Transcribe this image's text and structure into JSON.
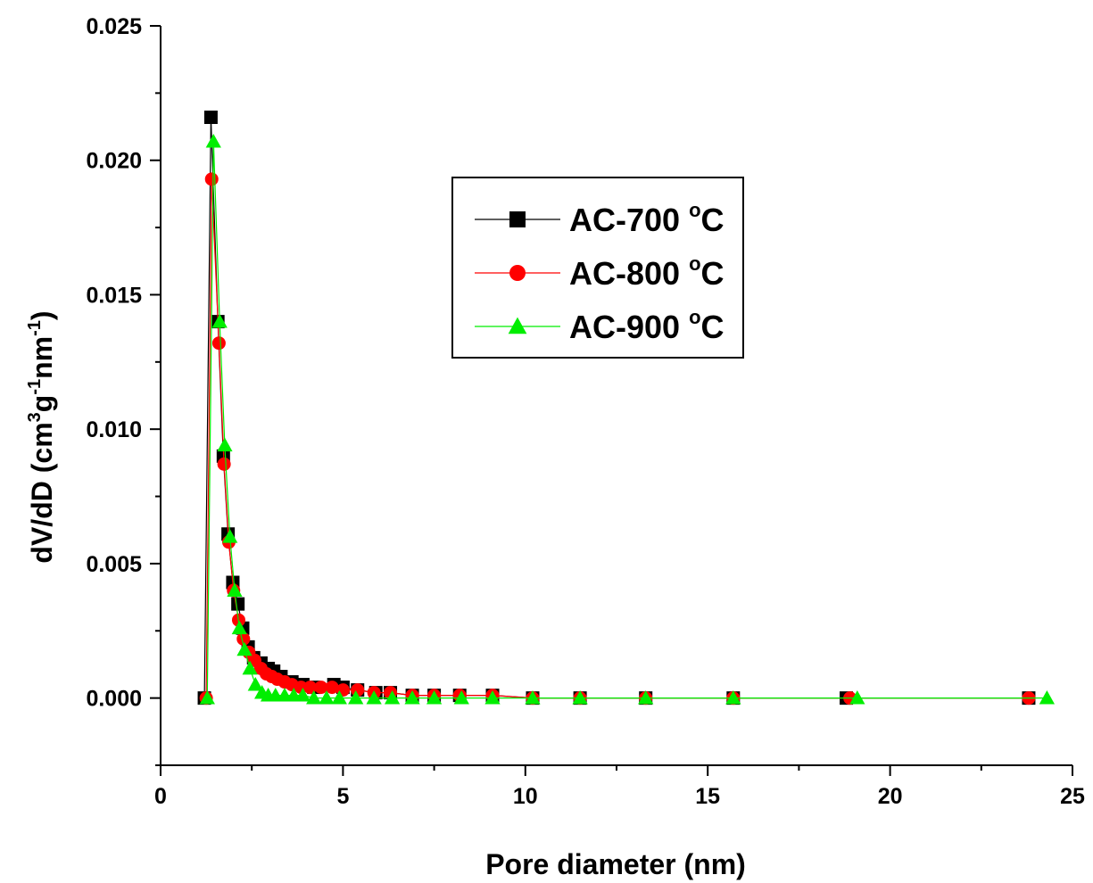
{
  "chart_data": {
    "type": "scatter",
    "xlabel": "Pore diameter (nm)",
    "ylabel": {
      "prefix": "dV/dD (cm",
      "sup1": "3",
      "mid": "g",
      "sup2": "-1",
      "mid2": "nm",
      "sup3": "-1",
      "suffix": ")"
    },
    "xlim": [
      0,
      25
    ],
    "ylim": [
      -0.0025,
      0.025
    ],
    "xticks": [
      "0",
      "5",
      "10",
      "15",
      "20",
      "25"
    ],
    "yticks": [
      "0.000",
      "0.005",
      "0.010",
      "0.015",
      "0.020",
      "0.025"
    ],
    "grid": false,
    "legend_position": "upper-center",
    "series": [
      {
        "name": "AC-700 °C",
        "name_base": "AC-700 ",
        "name_sup": "o",
        "name_unit": "C",
        "color": "#000000",
        "marker": "square",
        "x": [
          1.2,
          1.38,
          1.57,
          1.72,
          1.85,
          1.98,
          2.12,
          2.25,
          2.4,
          2.55,
          2.75,
          2.95,
          3.1,
          3.3,
          3.6,
          3.9,
          4.2,
          4.75,
          5.0,
          5.4,
          5.9,
          6.3,
          6.9,
          7.5,
          8.2,
          9.1,
          10.2,
          11.5,
          13.3,
          15.7,
          18.8,
          23.8
        ],
        "y": [
          0.0,
          0.0216,
          0.014,
          0.009,
          0.0061,
          0.0043,
          0.0035,
          0.0026,
          0.0019,
          0.0015,
          0.0013,
          0.0011,
          0.001,
          0.0008,
          0.0006,
          0.0005,
          0.0004,
          0.0005,
          0.0004,
          0.0003,
          0.0002,
          0.0002,
          0.0001,
          0.0001,
          0.0001,
          0.0001,
          0.0,
          0.0,
          0.0,
          0.0,
          0.0,
          0.0
        ]
      },
      {
        "name": "AC-800 °C",
        "name_base": "AC-800 ",
        "name_sup": "o",
        "name_unit": "C",
        "color": "#ff0000",
        "marker": "circle",
        "x": [
          1.25,
          1.4,
          1.6,
          1.74,
          1.87,
          2.0,
          2.14,
          2.27,
          2.42,
          2.58,
          2.75,
          2.9,
          3.05,
          3.2,
          3.4,
          3.6,
          3.85,
          4.1,
          4.4,
          4.7,
          5.0,
          5.4,
          5.85,
          6.3,
          6.9,
          7.5,
          8.2,
          9.1,
          10.2,
          11.5,
          13.3,
          15.7,
          18.9,
          23.8
        ],
        "y": [
          0.0,
          0.0193,
          0.0132,
          0.0087,
          0.0058,
          0.004,
          0.0029,
          0.0022,
          0.0017,
          0.0014,
          0.0011,
          0.0009,
          0.0008,
          0.0007,
          0.0006,
          0.0005,
          0.0004,
          0.0004,
          0.0004,
          0.0004,
          0.0003,
          0.0003,
          0.0002,
          0.0002,
          0.0001,
          0.0001,
          0.0001,
          0.0001,
          0.0,
          0.0,
          0.0,
          0.0,
          0.0,
          0.0
        ]
      },
      {
        "name": "AC-900 °C",
        "name_base": "AC-900 ",
        "name_sup": "o",
        "name_unit": "C",
        "color": "#00ee00",
        "marker": "triangle",
        "x": [
          1.28,
          1.45,
          1.62,
          1.76,
          1.9,
          2.03,
          2.16,
          2.3,
          2.45,
          2.6,
          2.78,
          2.95,
          3.15,
          3.4,
          3.65,
          3.9,
          4.2,
          4.55,
          4.9,
          5.35,
          5.85,
          6.35,
          6.9,
          7.5,
          8.25,
          9.1,
          10.2,
          11.5,
          13.3,
          15.7,
          19.1,
          24.3
        ],
        "y": [
          0.0,
          0.0207,
          0.014,
          0.0094,
          0.006,
          0.004,
          0.0026,
          0.0018,
          0.0011,
          0.0005,
          0.0002,
          0.0001,
          0.0001,
          0.0001,
          0.0001,
          0.0001,
          0.0,
          0.0,
          0.0,
          0.0,
          0.0,
          0.0,
          0.0,
          0.0,
          0.0,
          0.0,
          0.0,
          0.0,
          0.0,
          0.0,
          0.0,
          0.0
        ]
      }
    ]
  }
}
